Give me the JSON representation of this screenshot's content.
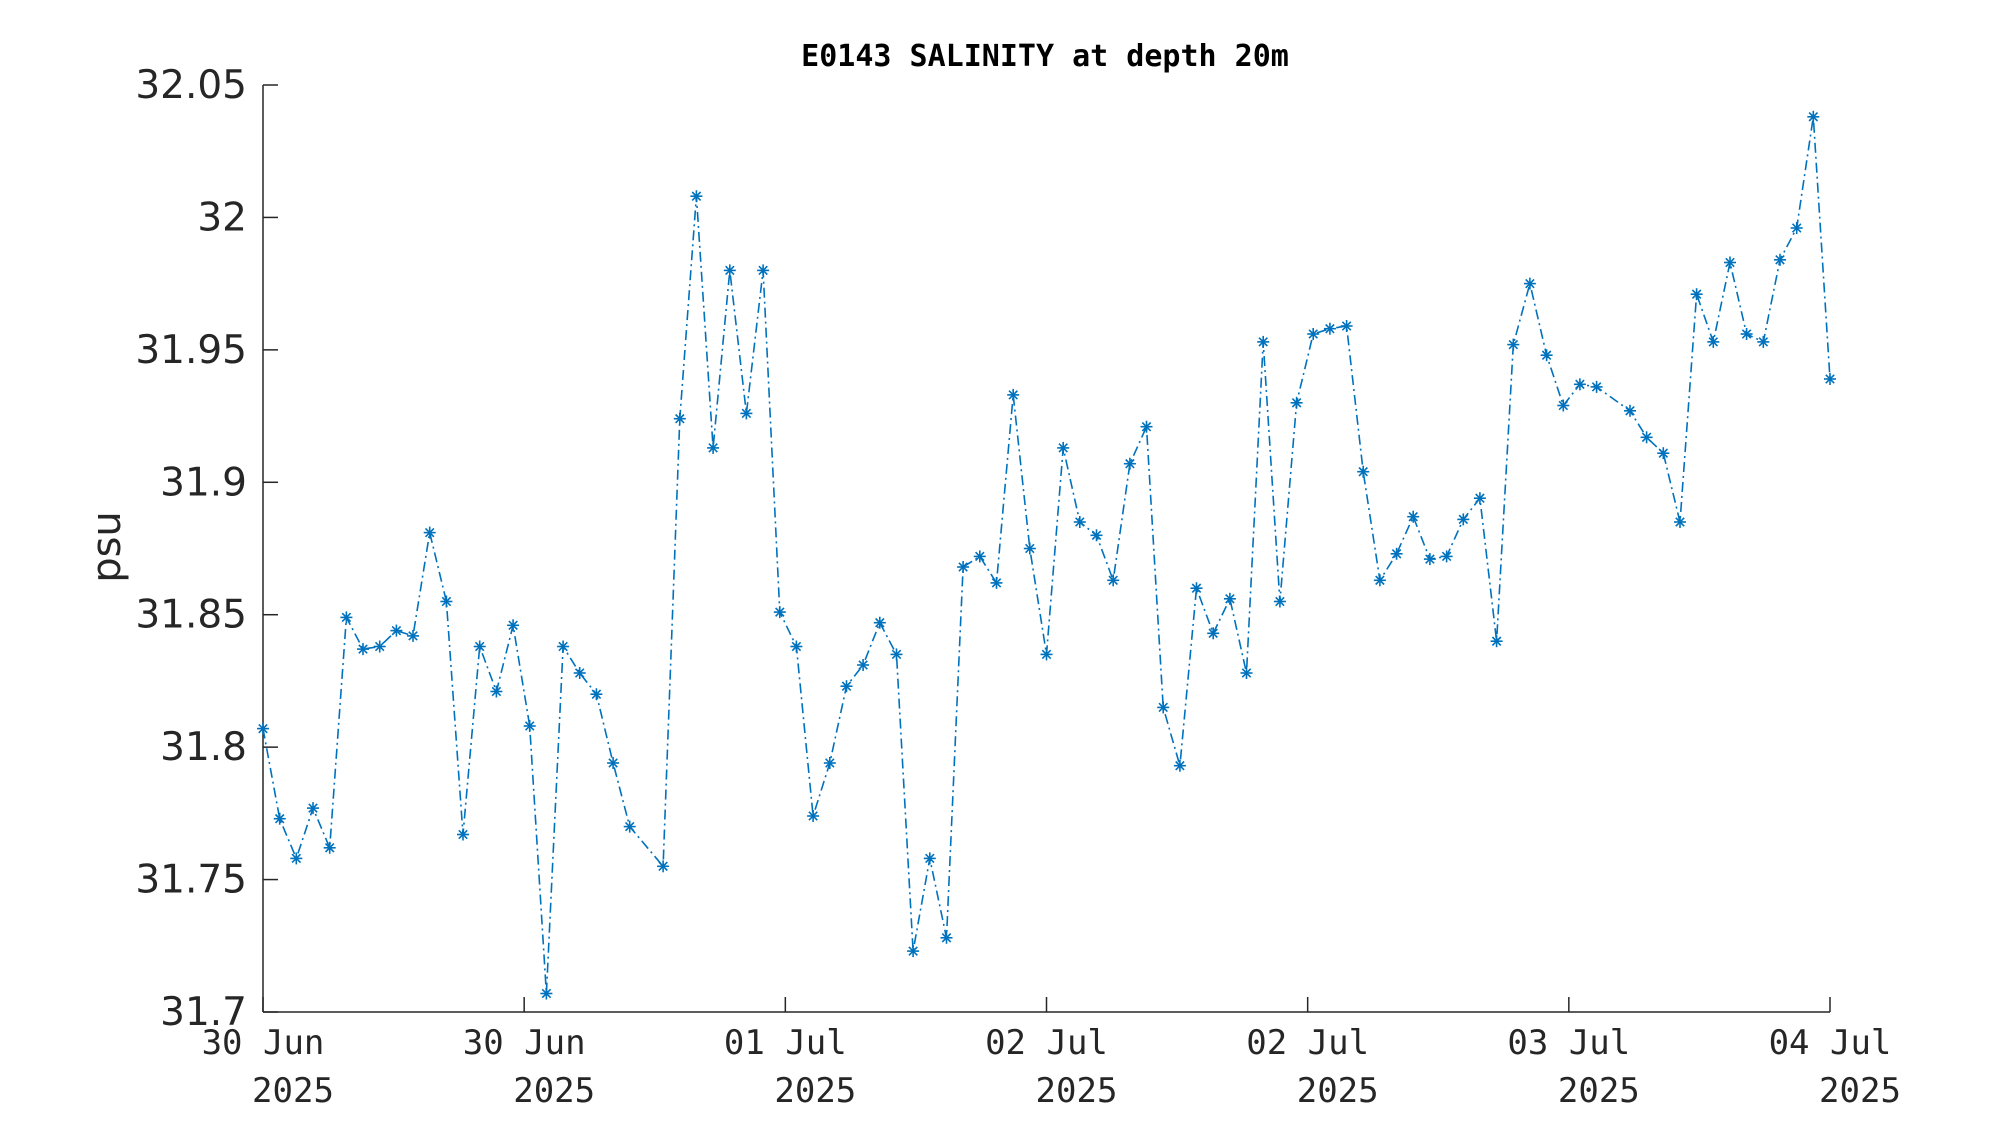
{
  "chart_data": {
    "type": "line",
    "title": "E0143 SALINITY at depth 20m",
    "xlabel": "",
    "ylabel": "psu",
    "ylim": [
      31.7,
      32.05
    ],
    "y_ticks": [
      "31.7",
      "31.75",
      "31.8",
      "31.85",
      "31.9",
      "31.95",
      "32",
      "32.05"
    ],
    "x_ticks": [
      {
        "line1": "30 Jun",
        "line2": "2025"
      },
      {
        "line1": "30 Jun",
        "line2": "2025"
      },
      {
        "line1": "01 Jul",
        "line2": "2025"
      },
      {
        "line1": "02 Jul",
        "line2": "2025"
      },
      {
        "line1": "02 Jul",
        "line2": "2025"
      },
      {
        "line1": "03 Jul",
        "line2": "2025"
      },
      {
        "line1": "04 Jul",
        "line2": "2025"
      }
    ],
    "line_style": "dash-dot",
    "marker": "asterisk",
    "color": "#0072BD",
    "grid": false,
    "legend": "none",
    "series": [
      {
        "values": [
          31.807,
          31.773,
          31.758,
          31.777,
          31.762,
          31.849,
          31.837,
          31.838,
          31.844,
          31.842,
          31.881,
          31.855,
          31.767,
          31.838,
          31.821,
          31.846,
          31.808,
          31.707,
          31.838,
          31.828,
          31.82,
          31.794,
          31.77,
          31.755,
          31.924,
          32.008,
          31.913,
          31.98,
          31.926,
          31.98,
          31.851,
          31.838,
          31.774,
          31.794,
          31.823,
          31.831,
          31.847,
          31.835,
          31.723,
          31.758,
          31.728,
          31.868,
          31.872,
          31.862,
          31.933,
          31.875,
          31.835,
          31.913,
          31.885,
          31.88,
          31.863,
          31.907,
          31.921,
          31.815,
          31.793,
          31.86,
          31.843,
          31.856,
          31.828,
          31.953,
          31.855,
          31.93,
          31.956,
          31.958,
          31.959,
          31.904,
          31.863,
          31.873,
          31.887,
          31.871,
          31.872,
          31.886,
          31.894,
          31.84,
          31.952,
          31.975,
          31.948,
          31.929,
          31.937,
          31.936,
          31.927,
          31.917,
          31.911,
          31.885,
          31.971,
          31.953,
          31.983,
          31.956,
          31.953,
          31.984,
          31.996,
          32.038,
          31.939
        ],
        "x_index": [
          0,
          1,
          2,
          3,
          4,
          5,
          6,
          7,
          8,
          9,
          10,
          11,
          12,
          13,
          14,
          15,
          16,
          17,
          18,
          19,
          20,
          21,
          22,
          24,
          25,
          26,
          27,
          28,
          29,
          30,
          31,
          32,
          33,
          34,
          35,
          36,
          37,
          38,
          39,
          40,
          41,
          42,
          43,
          44,
          45,
          46,
          47,
          48,
          49,
          50,
          51,
          52,
          53,
          54,
          55,
          56,
          57,
          58,
          59,
          60,
          61,
          62,
          63,
          64,
          65,
          66,
          67,
          68,
          69,
          70,
          71,
          72,
          73,
          74,
          75,
          76,
          77,
          78,
          79,
          80,
          82,
          83,
          84,
          85,
          86,
          87,
          88,
          89,
          90,
          91,
          92,
          93,
          94
        ]
      }
    ]
  }
}
